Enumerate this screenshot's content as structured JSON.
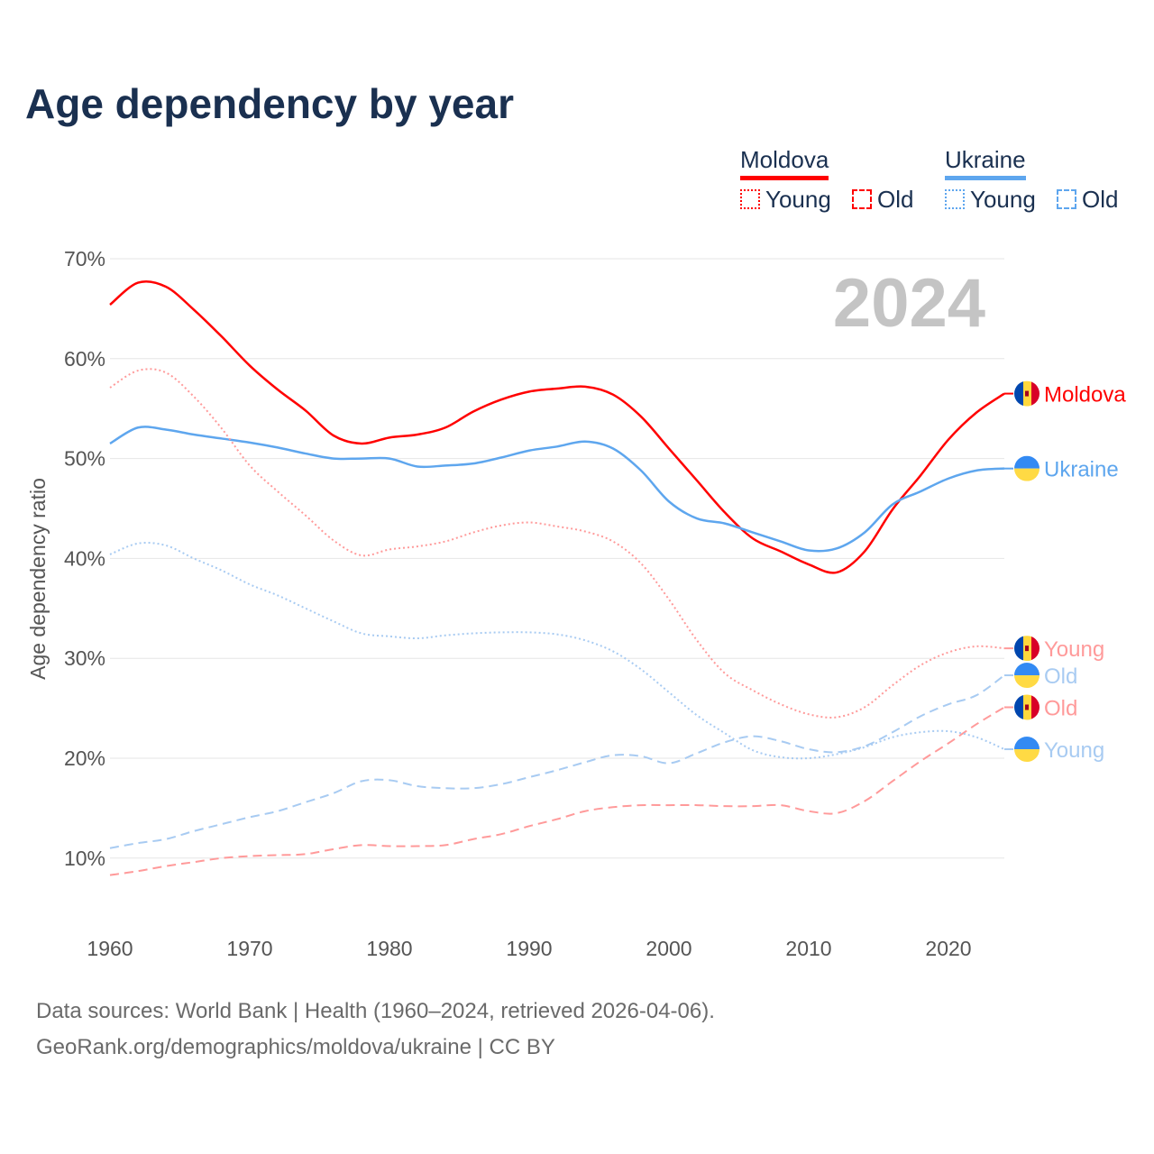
{
  "title": "Age dependency by year",
  "legend": {
    "groups": [
      {
        "country": "Moldova",
        "color": "#ff0000",
        "young": "Young",
        "old": "Old"
      },
      {
        "country": "Ukraine",
        "color": "#5ea6ee",
        "young": "Young",
        "old": "Old"
      }
    ]
  },
  "year_watermark": "2024",
  "footer": {
    "line1": "Data sources: World Bank | Health (1960–2024, retrieved 2026-04-06).",
    "line2": "GeoRank.org/demographics/moldova/ukraine | CC BY"
  },
  "chart_data": {
    "type": "line",
    "title": "Age dependency by year",
    "xlabel": "",
    "ylabel": "Age dependency ratio",
    "xlim": [
      1960,
      2024
    ],
    "ylim": [
      5,
      70
    ],
    "x_ticks": [
      "1960",
      "1970",
      "1980",
      "1990",
      "2000",
      "2010",
      "2020"
    ],
    "y_ticks": [
      "10%",
      "20%",
      "30%",
      "40%",
      "50%",
      "60%",
      "70%"
    ],
    "grid": true,
    "legend_position": "top-right",
    "x": [
      1960,
      1962,
      1964,
      1966,
      1968,
      1970,
      1972,
      1974,
      1976,
      1978,
      1980,
      1982,
      1984,
      1986,
      1988,
      1990,
      1992,
      1994,
      1996,
      1998,
      2000,
      2002,
      2004,
      2006,
      2008,
      2010,
      2012,
      2014,
      2016,
      2018,
      2020,
      2022,
      2024
    ],
    "series": [
      {
        "name": "Moldova",
        "end_label": "Moldova",
        "flag": "moldova",
        "style": "solid",
        "color": "#ff0000",
        "values": [
          65.4,
          67.6,
          67.2,
          64.9,
          62.2,
          59.3,
          56.9,
          54.8,
          52.3,
          51.5,
          52.1,
          52.4,
          53.1,
          54.7,
          55.9,
          56.7,
          57.0,
          57.2,
          56.4,
          54.2,
          51.0,
          47.8,
          44.6,
          42.0,
          40.7,
          39.4,
          38.6,
          40.7,
          44.9,
          48.3,
          51.9,
          54.6,
          56.5
        ]
      },
      {
        "name": "Ukraine",
        "end_label": "Ukraine",
        "flag": "ukraine",
        "style": "solid",
        "color": "#5ea6ee",
        "values": [
          51.5,
          53.1,
          52.9,
          52.4,
          52.0,
          51.6,
          51.1,
          50.5,
          50.0,
          50.0,
          50.0,
          49.2,
          49.3,
          49.5,
          50.1,
          50.8,
          51.2,
          51.7,
          51.0,
          48.8,
          45.7,
          44.0,
          43.5,
          42.6,
          41.7,
          40.8,
          41.0,
          42.6,
          45.4,
          46.7,
          48.0,
          48.8,
          49.0
        ]
      },
      {
        "name": "Moldova Young",
        "end_label": "Young",
        "flag": "moldova",
        "style": "dotted",
        "color": "#ff9a9a",
        "values": [
          57.1,
          58.8,
          58.6,
          56.2,
          53.0,
          49.3,
          46.7,
          44.3,
          41.8,
          40.3,
          40.9,
          41.2,
          41.7,
          42.6,
          43.3,
          43.6,
          43.2,
          42.7,
          41.7,
          39.5,
          35.9,
          31.8,
          28.5,
          26.8,
          25.4,
          24.4,
          24.1,
          25.1,
          27.3,
          29.3,
          30.6,
          31.2,
          31.0
        ]
      },
      {
        "name": "Ukraine Old",
        "end_label": "Old",
        "flag": "ukraine",
        "style": "dashed",
        "color": "#a8cbf2",
        "values": [
          11.0,
          11.5,
          11.9,
          12.7,
          13.4,
          14.1,
          14.7,
          15.6,
          16.5,
          17.7,
          17.8,
          17.2,
          17.0,
          17.0,
          17.4,
          18.1,
          18.8,
          19.6,
          20.3,
          20.2,
          19.5,
          20.5,
          21.6,
          22.2,
          21.7,
          20.9,
          20.6,
          21.2,
          22.6,
          24.2,
          25.4,
          26.3,
          28.3
        ]
      },
      {
        "name": "Moldova Old",
        "end_label": "Old",
        "flag": "moldova",
        "style": "dashed",
        "color": "#ff9a9a",
        "values": [
          8.3,
          8.7,
          9.2,
          9.6,
          10.0,
          10.2,
          10.3,
          10.4,
          10.9,
          11.3,
          11.2,
          11.2,
          11.3,
          11.9,
          12.4,
          13.2,
          13.9,
          14.7,
          15.1,
          15.3,
          15.3,
          15.3,
          15.2,
          15.2,
          15.3,
          14.7,
          14.5,
          15.7,
          17.7,
          19.7,
          21.5,
          23.4,
          25.1
        ]
      },
      {
        "name": "Ukraine Young",
        "end_label": "Young",
        "flag": "ukraine",
        "style": "dotted",
        "color": "#a8cbf2",
        "values": [
          40.4,
          41.5,
          41.3,
          40.0,
          38.8,
          37.4,
          36.3,
          35.0,
          33.7,
          32.5,
          32.2,
          32.0,
          32.3,
          32.5,
          32.6,
          32.6,
          32.4,
          31.8,
          30.7,
          28.9,
          26.6,
          24.3,
          22.5,
          20.8,
          20.1,
          20.0,
          20.4,
          21.1,
          22.1,
          22.6,
          22.7,
          22.1,
          20.9
        ]
      }
    ]
  }
}
